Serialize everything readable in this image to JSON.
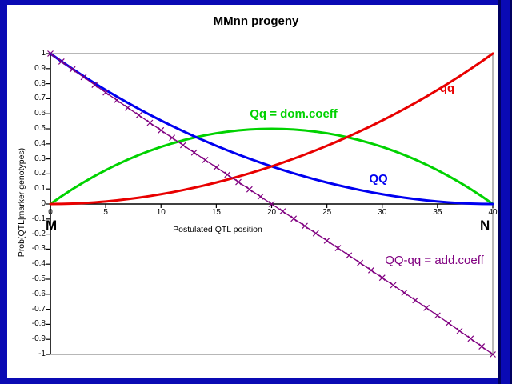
{
  "slide": {
    "title": "MMnn progeny",
    "frame_color": "#0a0ab4",
    "frame_dark_color": "#00005f",
    "background": "#ffffff"
  },
  "colors": {
    "grid": "#8c8c8c",
    "axis": "#000000",
    "qq_series": "#e80000",
    "QQ_series": "#0000f0",
    "Qq_series": "#00d200",
    "add_series": "#800080"
  },
  "axes": {
    "y_title": "Prob(QTL|marker genotypes)",
    "x_title": "Postulated QTL position",
    "x_ticks": [
      "0",
      "5",
      "10",
      "15",
      "20",
      "25",
      "30",
      "35",
      "40"
    ],
    "y_ticks": [
      "1",
      "0.9",
      "0.8",
      "0.7",
      "0.6",
      "0.5",
      "0.4",
      "0.3",
      "0.2",
      "0.1",
      "0",
      "-0.1",
      "-0.2",
      "-0.3",
      "-0.4",
      "-0.5",
      "-0.6",
      "-0.7",
      "-0.8",
      "-0.9",
      "-1"
    ],
    "left_flank_marker": "M",
    "right_flank_marker": "N"
  },
  "annotations": [
    {
      "text": "qq",
      "color": "#e80000"
    },
    {
      "text": "Qq = dom.coeff",
      "color": "#00d200"
    },
    {
      "text": "QQ",
      "color": "#0000f0"
    },
    {
      "text": "QQ-qq = add.coeff",
      "color": "#800080"
    }
  ],
  "chart_data": {
    "type": "line",
    "title": "MMnn progeny",
    "xlabel": "Postulated QTL position",
    "ylabel": "Prob(QTL|marker genotypes)",
    "xlim": [
      0,
      40
    ],
    "ylim": [
      -1,
      1
    ],
    "grid": false,
    "legend_position": "inline-labels",
    "x": [
      0,
      1,
      2,
      3,
      4,
      5,
      6,
      7,
      8,
      9,
      10,
      11,
      12,
      13,
      14,
      15,
      16,
      17,
      18,
      19,
      20,
      21,
      22,
      23,
      24,
      25,
      26,
      27,
      28,
      29,
      30,
      31,
      32,
      33,
      34,
      35,
      36,
      37,
      38,
      39,
      40
    ],
    "series": [
      {
        "name": "Qq = dom.coeff",
        "color": "#00d200",
        "width": 3,
        "marker": "none",
        "values": [
          0,
          0.0512,
          0.0991,
          0.144,
          0.186,
          0.2252,
          0.2615,
          0.2951,
          0.326,
          0.3542,
          0.3799,
          0.4029,
          0.4235,
          0.4415,
          0.4571,
          0.4703,
          0.481,
          0.4893,
          0.4953,
          0.4988,
          0.5,
          0.4988,
          0.4953,
          0.4893,
          0.481,
          0.4703,
          0.4571,
          0.4415,
          0.4235,
          0.4029,
          0.3799,
          0.3542,
          0.326,
          0.2951,
          0.2615,
          0.2252,
          0.186,
          0.144,
          0.0991,
          0.0512,
          0
        ]
      },
      {
        "name": "QQ",
        "color": "#0000f0",
        "width": 3,
        "marker": "none",
        "values": [
          1,
          0.9481,
          0.8982,
          0.8499,
          0.8032,
          0.7581,
          0.7145,
          0.6725,
          0.632,
          0.5929,
          0.5551,
          0.5188,
          0.4839,
          0.4502,
          0.4179,
          0.3868,
          0.357,
          0.3284,
          0.3011,
          0.2749,
          0.25,
          0.2262,
          0.2037,
          0.1823,
          0.162,
          0.1429,
          0.125,
          0.1083,
          0.0927,
          0.0782,
          0.065,
          0.0529,
          0.042,
          0.0324,
          0.0239,
          0.0167,
          0.0108,
          0.0061,
          0.0027,
          0.0007,
          0
        ]
      },
      {
        "name": "qq",
        "color": "#e80000",
        "width": 3,
        "marker": "none",
        "values": [
          0,
          0.0007,
          0.0027,
          0.0061,
          0.0108,
          0.0167,
          0.0239,
          0.0324,
          0.042,
          0.0529,
          0.065,
          0.0782,
          0.0927,
          0.1083,
          0.125,
          0.1429,
          0.162,
          0.1823,
          0.2037,
          0.2262,
          0.25,
          0.2749,
          0.3011,
          0.3284,
          0.357,
          0.3868,
          0.4179,
          0.4502,
          0.4839,
          0.5188,
          0.5551,
          0.5929,
          0.632,
          0.6725,
          0.7145,
          0.7581,
          0.8032,
          0.8499,
          0.8982,
          0.9481,
          1
        ]
      },
      {
        "name": "QQ-qq = add.coeff",
        "color": "#800080",
        "width": 1.3,
        "marker": "x",
        "values": [
          1,
          0.9474,
          0.8954,
          0.8438,
          0.7924,
          0.7414,
          0.6906,
          0.6401,
          0.5899,
          0.5399,
          0.4902,
          0.4406,
          0.3912,
          0.342,
          0.2928,
          0.2439,
          0.195,
          0.1462,
          0.0974,
          0.0487,
          0,
          -0.0487,
          -0.0974,
          -0.1462,
          -0.195,
          -0.2439,
          -0.2928,
          -0.342,
          -0.3912,
          -0.4406,
          -0.4902,
          -0.5399,
          -0.5899,
          -0.6401,
          -0.6906,
          -0.7414,
          -0.7924,
          -0.8438,
          -0.8954,
          -0.9474,
          -1
        ]
      }
    ]
  }
}
